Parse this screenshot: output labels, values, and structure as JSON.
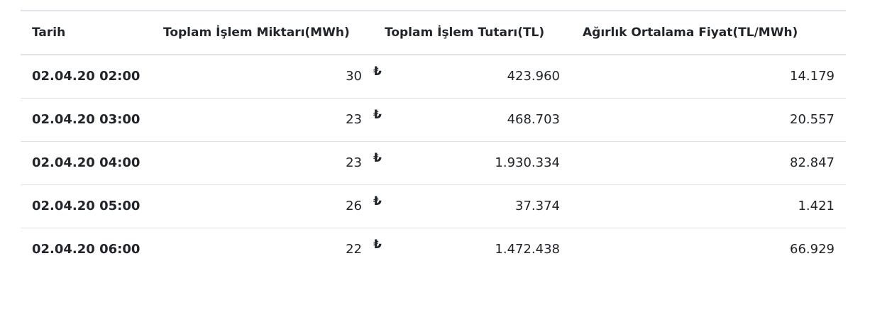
{
  "table": {
    "headers": {
      "date": "Tarih",
      "quantity": "Toplam İşlem Miktarı(MWh)",
      "amount": "Toplam İşlem Tutarı(TL)",
      "weighted_price": "Ağırlık Ortalama Fiyat(TL/MWh)"
    },
    "currency_symbol": "₺",
    "rows": [
      {
        "date": "02.04.20 02:00",
        "quantity": "30",
        "amount": "423.960",
        "weighted_price": "14.179"
      },
      {
        "date": "02.04.20 03:00",
        "quantity": "23",
        "amount": "468.703",
        "weighted_price": "20.557"
      },
      {
        "date": "02.04.20 04:00",
        "quantity": "23",
        "amount": "1.930.334",
        "weighted_price": "82.847"
      },
      {
        "date": "02.04.20 05:00",
        "quantity": "26",
        "amount": "37.374",
        "weighted_price": "1.421"
      },
      {
        "date": "02.04.20 06:00",
        "quantity": "22",
        "amount": "1.472.438",
        "weighted_price": "66.929"
      }
    ]
  }
}
